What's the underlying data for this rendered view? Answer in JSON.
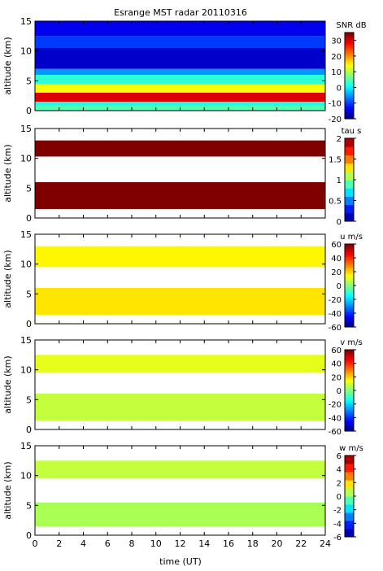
{
  "title": "Esrange MST radar 20110316",
  "x_axis": {
    "label": "time (UT)",
    "ticks": [
      0,
      2,
      4,
      6,
      8,
      10,
      12,
      14,
      16,
      18,
      20,
      22,
      24
    ],
    "range": [
      0,
      24
    ]
  },
  "chart_data": [
    {
      "type": "heatmap",
      "panel": "snr",
      "ylabel": "altitude (km)",
      "ylim": [
        0,
        15
      ],
      "yticks": [
        0,
        5,
        10,
        15
      ],
      "colorbar": {
        "label": "SNR dB",
        "ticks": [
          30,
          20,
          10,
          0,
          -10,
          -20
        ],
        "range": [
          -20,
          35
        ],
        "scale": "jet"
      },
      "bands": [
        {
          "alt": [
            0.0,
            0.8
          ],
          "value": 5
        },
        {
          "alt": [
            0.8,
            1.5
          ],
          "value": 2
        },
        {
          "alt": [
            1.5,
            3.0
          ],
          "value": 30
        },
        {
          "alt": [
            3.0,
            4.5
          ],
          "value": 14
        },
        {
          "alt": [
            4.5,
            6.0
          ],
          "value": 3
        },
        {
          "alt": [
            6.0,
            7.0
          ],
          "value": -5
        },
        {
          "alt": [
            7.0,
            10.5
          ],
          "value": -16
        },
        {
          "alt": [
            10.5,
            12.5
          ],
          "value": -10
        },
        {
          "alt": [
            12.5,
            15.0
          ],
          "value": -14
        }
      ]
    },
    {
      "type": "heatmap",
      "panel": "tau",
      "ylabel": "altitude (km)",
      "ylim": [
        0,
        15
      ],
      "yticks": [
        0,
        5,
        10,
        15
      ],
      "colorbar": {
        "label": "tau s",
        "ticks": [
          2,
          1.5,
          1,
          0.5,
          0
        ],
        "range": [
          0,
          2
        ],
        "scale": "stepped"
      },
      "bands": [
        {
          "alt": [
            1.5,
            6.0
          ],
          "value": 2.0
        },
        {
          "alt": [
            10.3,
            13.0
          ],
          "value": 2.0
        }
      ]
    },
    {
      "type": "heatmap",
      "panel": "u",
      "ylabel": "altitude (km)",
      "ylim": [
        0,
        15
      ],
      "yticks": [
        0,
        5,
        10,
        15
      ],
      "colorbar": {
        "label": "u m/s",
        "ticks": [
          60,
          40,
          20,
          0,
          -20,
          -40,
          -60
        ],
        "range": [
          -60,
          60
        ],
        "scale": "jet"
      },
      "bands": [
        {
          "alt": [
            1.5,
            6.0
          ],
          "value": 18
        },
        {
          "alt": [
            9.5,
            13.0
          ],
          "value": 16
        }
      ]
    },
    {
      "type": "heatmap",
      "panel": "v",
      "ylabel": "altitude (km)",
      "ylim": [
        0,
        15
      ],
      "yticks": [
        0,
        5,
        10,
        15
      ],
      "colorbar": {
        "label": "v m/s",
        "ticks": [
          60,
          40,
          20,
          0,
          -20,
          -40,
          -60
        ],
        "range": [
          -60,
          60
        ],
        "scale": "jet"
      },
      "bands": [
        {
          "alt": [
            1.5,
            6.0
          ],
          "value": 8
        },
        {
          "alt": [
            9.5,
            12.5
          ],
          "value": 12
        }
      ]
    },
    {
      "type": "heatmap",
      "panel": "w",
      "ylabel": "altitude (km)",
      "ylim": [
        0,
        15
      ],
      "yticks": [
        0,
        5,
        10,
        15
      ],
      "colorbar": {
        "label": "w m/s",
        "ticks": [
          6,
          4,
          2,
          0,
          -2,
          -4,
          -6
        ],
        "range": [
          -6,
          6
        ],
        "scale": "stepped"
      },
      "bands": [
        {
          "alt": [
            1.5,
            5.5
          ],
          "value": 0.5
        },
        {
          "alt": [
            9.5,
            12.5
          ],
          "value": 0.8
        }
      ]
    }
  ]
}
